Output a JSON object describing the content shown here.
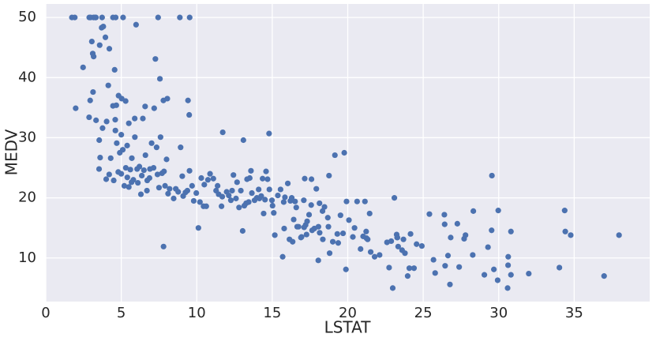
{
  "chart_data": {
    "type": "scatter",
    "xlabel": "LSTAT",
    "ylabel": "MEDV",
    "color": "#4c72b0",
    "grid": true,
    "xlim": [
      0,
      40
    ],
    "ylim": [
      2.75,
      52.25
    ],
    "xticks": [
      0,
      5,
      10,
      15,
      20,
      25,
      30,
      35
    ],
    "yticks": [
      10,
      20,
      30,
      40,
      50
    ],
    "x": [
      1.73,
      1.92,
      2.88,
      2.97,
      3.16,
      3.26,
      3.32,
      3.73,
      4.45,
      4.63,
      5.12,
      7.44,
      8.88,
      9.53,
      2.47,
      3.05,
      3.11,
      3.17,
      3.57,
      3.7,
      3.81,
      3.95,
      4.21,
      4.56,
      5.98,
      7.26,
      7.56,
      2.94,
      3.13,
      1.98,
      2.87,
      3.33,
      3.76,
      4.03,
      4.14,
      4.45,
      4.67,
      4.82,
      5.03,
      5.29,
      5.5,
      5.89,
      6.43,
      6.58,
      7.18,
      7.79,
      8.05,
      9.42,
      9.5,
      3.53,
      3.54,
      4.61,
      4.7,
      5.39,
      5.68,
      5.7,
      6.05,
      6.36,
      6.72,
      6.87,
      7.01,
      7.14,
      7.34,
      7.6,
      7.7,
      7.83,
      8.1,
      8.2,
      8.47,
      8.61,
      8.77,
      8.93,
      9.04,
      9.1,
      9.25,
      9.38,
      9.52,
      9.69,
      9.8,
      9.97,
      10.11,
      10.21,
      10.3,
      10.45,
      10.5,
      10.63,
      10.74,
      10.88,
      11.1,
      11.28,
      11.38,
      11.45,
      11.64,
      11.69,
      11.72,
      11.98,
      12.12,
      12.26,
      12.34,
      12.43,
      12.6,
      12.67,
      12.8,
      12.92,
      13.04,
      13.09,
      13.15,
      13.27,
      13.33,
      13.44,
      13.51,
      13.59,
      13.65,
      13.83,
      13.98,
      14.1,
      14.15,
      14.27,
      14.36,
      14.43,
      14.52,
      14.59,
      14.69,
      14.79,
      14.81,
      14.98,
      15.02,
      15.1,
      15.17,
      15.37,
      15.55,
      15.69,
      15.76,
      15.79,
      15.84,
      16.03,
      16.14,
      16.2,
      16.29,
      16.35,
      16.42,
      16.51,
      16.59,
      16.65,
      16.74,
      16.9,
      16.94,
      17.09,
      17.11,
      17.15,
      17.21,
      17.27,
      17.31,
      17.44,
      17.58,
      17.6,
      17.64,
      17.79,
      17.92,
      18.05,
      18.06,
      18.13,
      18.14,
      18.33,
      18.35,
      18.46,
      18.68,
      18.72,
      18.76,
      18.8,
      19.01,
      19.15,
      19.31,
      19.37,
      19.52,
      19.69,
      19.77,
      19.88,
      19.92,
      20.08,
      20.34,
      20.45,
      20.62,
      20.85,
      21.02,
      21.14,
      21.22,
      21.24,
      21.32,
      21.45,
      21.52,
      21.78,
      22.11,
      22.6,
      22.74,
      22.88,
      22.98,
      23.09,
      23.24,
      23.27,
      23.29,
      23.34,
      23.6,
      23.69,
      23.79,
      23.97,
      24.08,
      24.16,
      24.39,
      24.56,
      24.91,
      25.41,
      25.68,
      25.79,
      26.4,
      26.42,
      26.45,
      26.64,
      26.77,
      26.82,
      27.26,
      27.38,
      27.71,
      27.8,
      28.28,
      28.32,
      29.05,
      29.29,
      29.53,
      29.55,
      29.68,
      29.93,
      30.59,
      30.62,
      30.63,
      30.81,
      30.81,
      31.99,
      34.02,
      34.37,
      34.41,
      34.77,
      36.98,
      37.97,
      29.97,
      4.0,
      4.5,
      4.8,
      5.0,
      5.2,
      5.5,
      5.3,
      5.6,
      5.8,
      6.1,
      6.2,
      6.5,
      6.7,
      6.9,
      7.4,
      7.5,
      7.9,
      8.0,
      4.3,
      4.9,
      5.1,
      5.4,
      6.3,
      6.6,
      4.6,
      5.9,
      3.6,
      7.8,
      4.2,
      5.0
    ],
    "values": [
      50,
      50,
      50,
      50,
      50,
      50,
      50,
      50,
      50,
      50,
      50,
      50,
      50,
      50,
      41.7,
      46,
      44,
      43.5,
      45.4,
      48.3,
      48.5,
      46.7,
      44.8,
      41.3,
      48.8,
      43.1,
      39.8,
      36.2,
      37.6,
      34.9,
      33.4,
      32.9,
      31.6,
      32.7,
      38.7,
      35.3,
      35.4,
      37,
      36.5,
      36.1,
      32.4,
      33.2,
      33.2,
      35.2,
      34.9,
      36.2,
      36.5,
      36.2,
      33.8,
      24.8,
      29.6,
      31.2,
      29.1,
      28.7,
      22.6,
      26.6,
      24.8,
      23.7,
      22.9,
      23.3,
      29.1,
      25.0,
      28.4,
      30.1,
      24.1,
      24.4,
      20.7,
      21.5,
      19.9,
      21.5,
      21.0,
      28.4,
      23.6,
      20.3,
      20.9,
      21.2,
      24.5,
      22.0,
      19.5,
      20.8,
      15.0,
      19.3,
      23.3,
      18.6,
      22.2,
      18.6,
      23.0,
      24.0,
      23.2,
      21.2,
      22.0,
      20.6,
      18.6,
      20.2,
      30.9,
      21.0,
      20.4,
      19.6,
      21.2,
      23.8,
      19.9,
      22.6,
      18.4,
      21.2,
      14.5,
      29.6,
      18.7,
      19.1,
      23.1,
      19.3,
      23.3,
      24.5,
      20.8,
      19.6,
      20.0,
      21.4,
      19.9,
      20.3,
      23.2,
      17.4,
      19.7,
      24.4,
      23.1,
      30.7,
      21.4,
      19.6,
      18.7,
      17.5,
      13.8,
      20.4,
      21.4,
      10.2,
      19.3,
      14.9,
      20.1,
      22.4,
      13.1,
      19.5,
      20.0,
      12.7,
      16.4,
      19.4,
      18.4,
      15.2,
      15.2,
      13.4,
      13.5,
      19.6,
      15.1,
      23.2,
      15.5,
      13.9,
      16.1,
      17.2,
      18.8,
      23.1,
      14.6,
      14.9,
      21.5,
      9.6,
      15.2,
      19.1,
      14.2,
      17.8,
      13.1,
      18.5,
      16.7,
      15.2,
      23.7,
      10.8,
      12.7,
      27.1,
      14.0,
      12.5,
      17.1,
      14.1,
      27.5,
      8.1,
      19.4,
      16.3,
      13.5,
      15.0,
      19.4,
      11.5,
      13.6,
      19.4,
      14.4,
      13.3,
      13.1,
      17.4,
      11.0,
      10.2,
      10.5,
      12.6,
      8.4,
      12.8,
      5.0,
      20.0,
      13.9,
      13.4,
      13.4,
      11.9,
      11.3,
      13.1,
      10.8,
      7.0,
      8.3,
      14.0,
      8.3,
      12.3,
      12.0,
      17.3,
      9.7,
      7.5,
      17.2,
      15.6,
      8.7,
      10.4,
      5.6,
      13.4,
      15.7,
      8.5,
      13.2,
      13.8,
      10.5,
      17.8,
      7.2,
      11.8,
      14.6,
      23.7,
      8.1,
      6.3,
      5.0,
      8.8,
      10.2,
      7.2,
      14.4,
      7.4,
      8.4,
      17.9,
      14.4,
      13.8,
      7.0,
      13.8,
      17.9,
      23.1,
      22.9,
      24.3,
      24.0,
      22.0,
      21.8,
      25.0,
      24.7,
      23.0,
      22.5,
      25.2,
      24.6,
      21.2,
      24.8,
      23.9,
      21.7,
      22.0,
      26.4,
      26.6,
      27.5,
      28.0,
      23.4,
      20.6,
      27.1,
      33.0,
      30.1,
      26.7,
      11.9,
      23.9,
      30.5
    ]
  }
}
